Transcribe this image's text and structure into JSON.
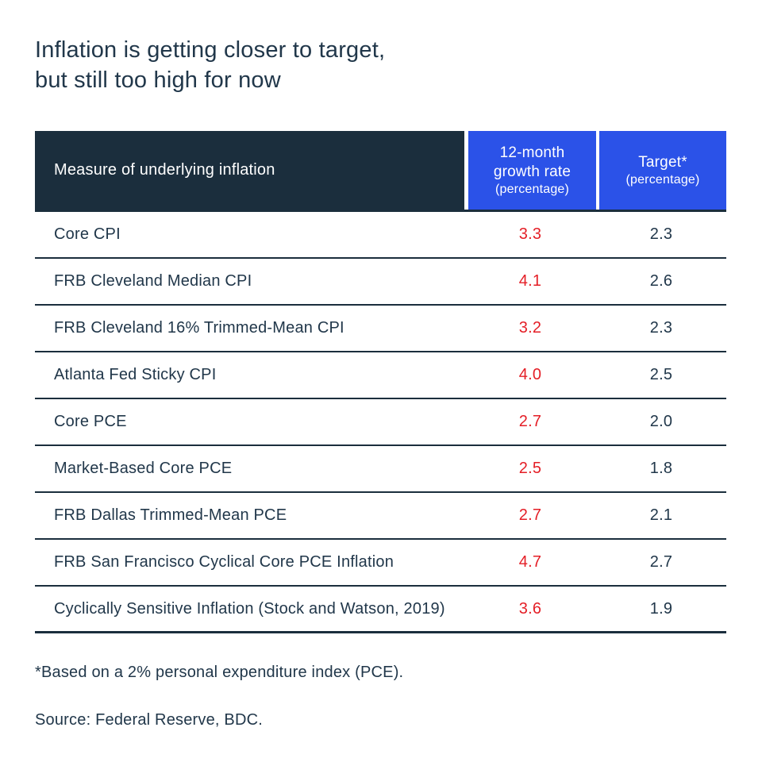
{
  "title": {
    "line1": "Inflation is getting closer to target,",
    "line2": "but still too high for now"
  },
  "table": {
    "header": {
      "measure": "Measure of underlying inflation",
      "growth_label": "12-month growth rate",
      "growth_sublabel": "(percentage)",
      "target_label": "Target*",
      "target_sublabel": "(percentage)"
    },
    "rows": [
      {
        "measure": "Core CPI",
        "growth": "3.3",
        "target": "2.3"
      },
      {
        "measure": "FRB Cleveland Median CPI",
        "growth": "4.1",
        "target": "2.6"
      },
      {
        "measure": "FRB Cleveland 16% Trimmed-Mean CPI",
        "growth": "3.2",
        "target": "2.3"
      },
      {
        "measure": "Atlanta Fed Sticky CPI",
        "growth": "4.0",
        "target": "2.5"
      },
      {
        "measure": "Core PCE",
        "growth": "2.7",
        "target": "2.0"
      },
      {
        "measure": "Market-Based Core PCE",
        "growth": "2.5",
        "target": "1.8"
      },
      {
        "measure": "FRB Dallas Trimmed-Mean PCE",
        "growth": "2.7",
        "target": "2.1"
      },
      {
        "measure": "FRB San Francisco Cyclical Core PCE Inflation",
        "growth": "4.7",
        "target": "2.7"
      },
      {
        "measure": "Cyclically Sensitive Inflation (Stock and Watson, 2019)",
        "growth": "3.6",
        "target": "1.9"
      }
    ]
  },
  "footnote": "*Based on a 2% personal expenditure index (PCE).",
  "source": "Source: Federal Reserve, BDC.",
  "colors": {
    "header_dark": "#1b2e3d",
    "header_blue": "#2b52e8",
    "growth_red": "#e41e26",
    "text_navy": "#21374a"
  },
  "chart_data": {
    "type": "table",
    "title": "Inflation is getting closer to target, but still too high for now",
    "columns": [
      "Measure of underlying inflation",
      "12-month growth rate (percentage)",
      "Target* (percentage)"
    ],
    "rows": [
      [
        "Core CPI",
        3.3,
        2.3
      ],
      [
        "FRB Cleveland Median CPI",
        4.1,
        2.6
      ],
      [
        "FRB Cleveland 16% Trimmed-Mean CPI",
        3.2,
        2.3
      ],
      [
        "Atlanta Fed Sticky CPI",
        4.0,
        2.5
      ],
      [
        "Core PCE",
        2.7,
        2.0
      ],
      [
        "Market-Based Core PCE",
        2.5,
        1.8
      ],
      [
        "FRB Dallas Trimmed-Mean PCE",
        2.7,
        2.1
      ],
      [
        "FRB San Francisco Cyclical Core PCE Inflation",
        4.7,
        2.7
      ],
      [
        "Cyclically Sensitive Inflation (Stock and Watson, 2019)",
        3.6,
        1.9
      ]
    ],
    "footnote": "*Based on a 2% personal expenditure index (PCE).",
    "source": "Source: Federal Reserve, BDC.",
    "value_color_growth": "#e41e26",
    "value_color_target": "#21374a"
  }
}
